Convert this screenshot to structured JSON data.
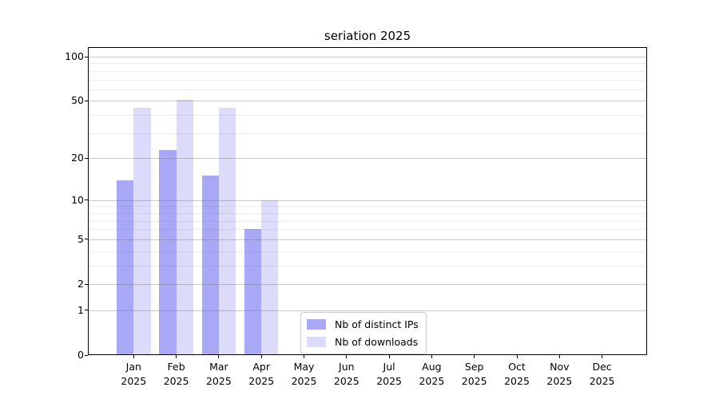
{
  "title": "seriation 2025",
  "colors": {
    "distinct_ips_bar": "#a8a8f7",
    "downloads_bar": "#dcdcfa",
    "grid_major": "#c9c9c9",
    "grid_minor": "#ededed",
    "axis": "#000000",
    "legend_border": "#cccccc"
  },
  "legend": {
    "items": [
      {
        "label": "Nb of distinct IPs"
      },
      {
        "label": "Nb of downloads"
      }
    ]
  },
  "x_axis": {
    "months": [
      "Jan",
      "Feb",
      "Mar",
      "Apr",
      "May",
      "Jun",
      "Jul",
      "Aug",
      "Sep",
      "Oct",
      "Nov",
      "Dec"
    ],
    "year": "2025"
  },
  "y_axis": {
    "tick_values": [
      0,
      1,
      2,
      5,
      10,
      20,
      50,
      100
    ]
  },
  "chart_data": {
    "type": "bar",
    "title": "seriation 2025",
    "categories": [
      "Jan 2025",
      "Feb 2025",
      "Mar 2025",
      "Apr 2025",
      "May 2025",
      "Jun 2025",
      "Jul 2025",
      "Aug 2025",
      "Sep 2025",
      "Oct 2025",
      "Nov 2025",
      "Dec 2025"
    ],
    "series": [
      {
        "name": "Nb of distinct IPs",
        "color": "#a8a8f7",
        "values": [
          14,
          23,
          15,
          6,
          0,
          0,
          0,
          0,
          0,
          0,
          0,
          0
        ]
      },
      {
        "name": "Nb of downloads",
        "color": "#dcdcfa",
        "values": [
          45,
          51,
          45,
          10,
          0,
          0,
          0,
          0,
          0,
          0,
          0,
          0
        ]
      }
    ],
    "y_scale": "log10(1+x)",
    "y_ticks": [
      0,
      1,
      2,
      5,
      10,
      20,
      50,
      100
    ],
    "y_minor_gridlines": [
      3,
      4,
      6,
      7,
      8,
      9,
      30,
      40,
      60,
      70,
      80,
      90
    ],
    "ylim": [
      0,
      117
    ],
    "grid": true,
    "legend_position": "lower center"
  }
}
